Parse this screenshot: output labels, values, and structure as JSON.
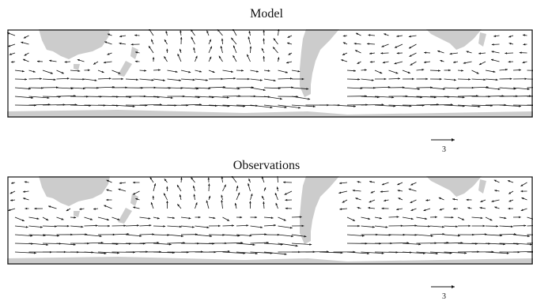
{
  "panels": [
    {
      "title": "Model",
      "scale_label": "3",
      "scale_magnitude": 3
    },
    {
      "title": "Observations",
      "scale_label": "3",
      "scale_magnitude": 3
    }
  ],
  "colors": {
    "land": "#cccccc",
    "arrow": "#111111",
    "frame": "#111111",
    "background": "#ffffff"
  }
}
